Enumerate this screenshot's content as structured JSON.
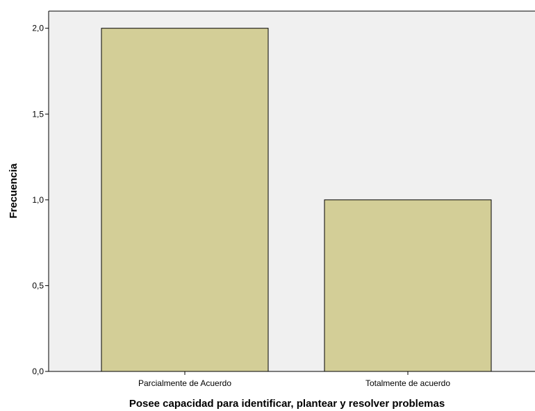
{
  "chart_data": {
    "type": "bar",
    "categories": [
      "Parcialmente de Acuerdo",
      "Totalmente de acuerdo"
    ],
    "values": [
      2,
      1
    ],
    "xlabel": "Posee capacidad para identificar, plantear y resolver problemas",
    "ylabel": "Frecuencia",
    "ylim": [
      0,
      2.1
    ],
    "yticks": [
      0,
      0.5,
      1,
      1.5,
      2
    ],
    "ytick_labels": [
      "0,0",
      "0,5",
      "1,0",
      "1,5",
      "2,0"
    ],
    "grid": false,
    "legend": "none"
  },
  "colors": {
    "plot_background": "#f0f0f0",
    "bar_fill": "#d3ce97",
    "bar_stroke": "#000000"
  }
}
